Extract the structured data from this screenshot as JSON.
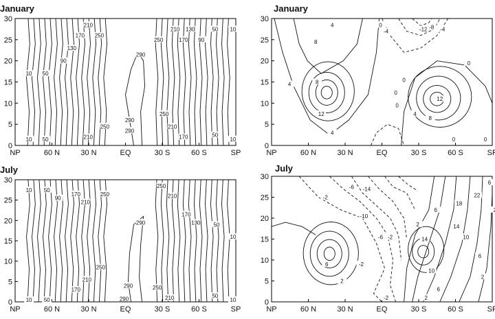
{
  "chart_data": [
    {
      "id": "jan-left",
      "type": "contour",
      "title": "January",
      "x_ticks": [
        "NP",
        "60 N",
        "30 N",
        "EQ",
        "30 S",
        "60 S",
        "SP"
      ],
      "y_ticks": [
        "0",
        "5",
        "10",
        "15",
        "20",
        "25",
        "30"
      ],
      "ylim": [
        0,
        30
      ],
      "contour_labels": [
        {
          "text": "210",
          "x": 5.3,
          "y": 28.5
        },
        {
          "text": "170",
          "x": 4.7,
          "y": 26.0
        },
        {
          "text": "250",
          "x": 6.1,
          "y": 26.0
        },
        {
          "text": "130",
          "x": 4.1,
          "y": 23.0
        },
        {
          "text": "90",
          "x": 3.5,
          "y": 20.0
        },
        {
          "text": "10",
          "x": 1.0,
          "y": 17.0
        },
        {
          "text": "50",
          "x": 2.2,
          "y": 17.0
        },
        {
          "text": "290",
          "x": 9.1,
          "y": 21.5
        },
        {
          "text": "210",
          "x": 11.6,
          "y": 27.5
        },
        {
          "text": "130",
          "x": 12.7,
          "y": 27.5
        },
        {
          "text": "50",
          "x": 14.5,
          "y": 27.5
        },
        {
          "text": "10",
          "x": 15.8,
          "y": 27.5
        },
        {
          "text": "250",
          "x": 10.4,
          "y": 25.0
        },
        {
          "text": "170",
          "x": 12.2,
          "y": 25.0
        },
        {
          "text": "90",
          "x": 13.5,
          "y": 25.0
        },
        {
          "text": "290",
          "x": 8.3,
          "y": 6.0
        },
        {
          "text": "290",
          "x": 8.3,
          "y": 3.5
        },
        {
          "text": "250",
          "x": 6.5,
          "y": 4.5
        },
        {
          "text": "210",
          "x": 5.3,
          "y": 2.0
        },
        {
          "text": "10",
          "x": 1.0,
          "y": 1.5
        },
        {
          "text": "50",
          "x": 2.2,
          "y": 1.5
        },
        {
          "text": "250",
          "x": 10.8,
          "y": 7.5
        },
        {
          "text": "210",
          "x": 11.4,
          "y": 4.5
        },
        {
          "text": "170",
          "x": 12.2,
          "y": 2.0
        },
        {
          "text": "50",
          "x": 14.5,
          "y": 2.5
        },
        {
          "text": "10",
          "x": 15.8,
          "y": 1.5
        }
      ],
      "x_extent": [
        0,
        16
      ]
    },
    {
      "id": "jan-right",
      "type": "contour",
      "title": "January",
      "x_ticks": [
        "NP",
        "60 N",
        "30 N",
        "EQ",
        "30 S",
        "60 S",
        "SP"
      ],
      "y_ticks": [
        "0",
        "5",
        "10",
        "15",
        "20",
        "25",
        "30"
      ],
      "ylim": [
        0,
        30
      ],
      "contour_labels": [
        {
          "text": "4",
          "x": 4.4,
          "y": 28.5
        },
        {
          "text": "8",
          "x": 3.2,
          "y": 24.5
        },
        {
          "text": "4",
          "x": 1.3,
          "y": 14.5
        },
        {
          "text": "8",
          "x": 3.3,
          "y": 15.0
        },
        {
          "text": "12",
          "x": 3.6,
          "y": 7.5
        },
        {
          "text": "4",
          "x": 4.4,
          "y": 3.0
        },
        {
          "text": "0",
          "x": 7.9,
          "y": 28.5
        },
        {
          "text": "-4",
          "x": 8.3,
          "y": 27.0
        },
        {
          "text": "-12",
          "x": 11.0,
          "y": 27.5
        },
        {
          "text": "-8",
          "x": 11.6,
          "y": 28.0
        },
        {
          "text": "-4",
          "x": 12.4,
          "y": 27.5
        },
        {
          "text": "0",
          "x": 14.3,
          "y": 19.5
        },
        {
          "text": "0",
          "x": 9.0,
          "y": 12.5
        },
        {
          "text": "0",
          "x": 9.6,
          "y": 15.5
        },
        {
          "text": "0",
          "x": 9.1,
          "y": 9.5
        },
        {
          "text": "12",
          "x": 12.2,
          "y": 11.0
        },
        {
          "text": "4",
          "x": 10.4,
          "y": 7.5
        },
        {
          "text": "8",
          "x": 11.5,
          "y": 6.5
        },
        {
          "text": "0",
          "x": 13.2,
          "y": 1.5
        },
        {
          "text": "0",
          "x": 15.5,
          "y": 1.5
        }
      ],
      "x_extent": [
        0,
        16
      ]
    },
    {
      "id": "jul-left",
      "type": "contour",
      "title": "July",
      "x_ticks": [
        "NP",
        "60 N",
        "30 N",
        "EQ",
        "30 S",
        "60 S",
        "SP"
      ],
      "y_ticks": [
        "0",
        "5",
        "10",
        "15",
        "20",
        "25",
        "30"
      ],
      "ylim": [
        0,
        30
      ],
      "contour_labels": [
        {
          "text": "10",
          "x": 1.0,
          "y": 27.5
        },
        {
          "text": "50",
          "x": 2.3,
          "y": 27.5
        },
        {
          "text": "90",
          "x": 3.1,
          "y": 25.5
        },
        {
          "text": "170",
          "x": 4.4,
          "y": 26.5
        },
        {
          "text": "210",
          "x": 5.1,
          "y": 24.5
        },
        {
          "text": "250",
          "x": 6.5,
          "y": 26.5
        },
        {
          "text": "290",
          "x": 9.1,
          "y": 19.5
        },
        {
          "text": "250",
          "x": 10.6,
          "y": 28.5
        },
        {
          "text": "210",
          "x": 11.4,
          "y": 26.0
        },
        {
          "text": "170",
          "x": 12.4,
          "y": 21.5
        },
        {
          "text": "130",
          "x": 13.1,
          "y": 19.5
        },
        {
          "text": "50",
          "x": 14.6,
          "y": 19.0
        },
        {
          "text": "10",
          "x": 15.8,
          "y": 16.0
        },
        {
          "text": "250",
          "x": 6.2,
          "y": 8.5
        },
        {
          "text": "210",
          "x": 5.2,
          "y": 5.5
        },
        {
          "text": "170",
          "x": 4.4,
          "y": 3.0
        },
        {
          "text": "10",
          "x": 1.0,
          "y": 0.5
        },
        {
          "text": "50",
          "x": 2.3,
          "y": 0.5
        },
        {
          "text": "290",
          "x": 8.2,
          "y": 4.0
        },
        {
          "text": "290",
          "x": 7.9,
          "y": 0.8
        },
        {
          "text": "250",
          "x": 10.3,
          "y": 3.5
        },
        {
          "text": "210",
          "x": 11.2,
          "y": 1.0
        },
        {
          "text": "50",
          "x": 14.5,
          "y": 1.5
        },
        {
          "text": "10",
          "x": 15.8,
          "y": 0.5
        }
      ],
      "x_extent": [
        0,
        16
      ]
    },
    {
      "id": "jul-right",
      "type": "contour",
      "title": "July",
      "x_ticks": [
        "NP",
        "60 N",
        "30 N",
        "EQ",
        "30 S",
        "60 S",
        "SP"
      ],
      "y_ticks": [
        "0",
        "5",
        "10",
        "15",
        "20",
        "25",
        "30"
      ],
      "ylim": [
        0,
        30
      ],
      "contour_labels": [
        {
          "text": "-6",
          "x": 5.8,
          "y": 27.5
        },
        {
          "text": "-14",
          "x": 6.9,
          "y": 27.0
        },
        {
          "text": "-2",
          "x": 3.9,
          "y": 25.0
        },
        {
          "text": "-10",
          "x": 6.7,
          "y": 20.5
        },
        {
          "text": "-6",
          "x": 7.9,
          "y": 15.5
        },
        {
          "text": "-2",
          "x": 8.6,
          "y": 15.5
        },
        {
          "text": "-2",
          "x": 6.5,
          "y": 9.0
        },
        {
          "text": "6",
          "x": 4.0,
          "y": 9.0
        },
        {
          "text": "2",
          "x": 5.1,
          "y": 5.0
        },
        {
          "text": "2",
          "x": 10.6,
          "y": 18.5
        },
        {
          "text": "6",
          "x": 11.9,
          "y": 22.0
        },
        {
          "text": "18",
          "x": 13.6,
          "y": 23.5
        },
        {
          "text": "22",
          "x": 14.9,
          "y": 25.5
        },
        {
          "text": "14",
          "x": 13.4,
          "y": 18.0
        },
        {
          "text": "14",
          "x": 11.1,
          "y": 15.0
        },
        {
          "text": "10",
          "x": 14.1,
          "y": 15.5
        },
        {
          "text": "2",
          "x": 16.2,
          "y": 22.0
        },
        {
          "text": "6",
          "x": 15.1,
          "y": 11.0
        },
        {
          "text": "10",
          "x": 11.6,
          "y": 7.5
        },
        {
          "text": "6",
          "x": 12.1,
          "y": 3.0
        },
        {
          "text": "2",
          "x": 15.3,
          "y": 6.0
        },
        {
          "text": "2",
          "x": 11.2,
          "y": 1.0
        },
        {
          "text": "-2",
          "x": 8.3,
          "y": 1.0
        },
        {
          "text": "6",
          "x": 15.8,
          "y": 28.5
        }
      ],
      "x_extent": [
        0,
        16
      ]
    }
  ],
  "panels": {
    "jan_left_title": "January",
    "jan_right_title": "January",
    "jul_left_title": "July",
    "jul_right_title": "July"
  }
}
